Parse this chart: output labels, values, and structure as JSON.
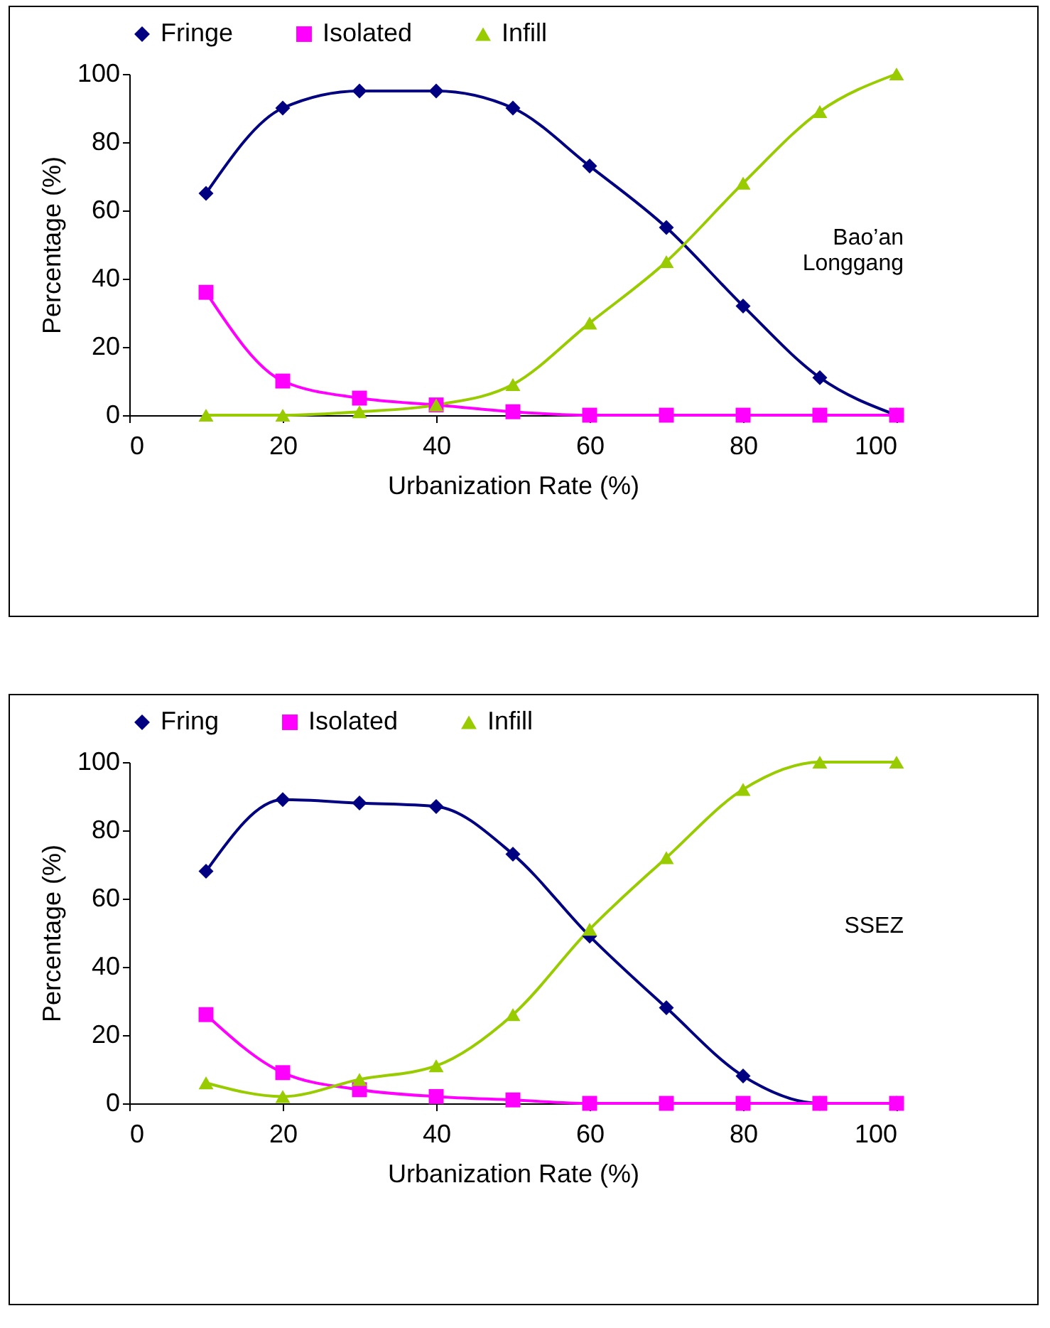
{
  "chart_data": [
    {
      "type": "line",
      "xlabel": "Urbanization Rate (%)",
      "ylabel": "Percentage (%)",
      "annotations": [
        "Bao’an\nLonggang"
      ],
      "x": [
        10,
        20,
        30,
        40,
        50,
        60,
        70,
        80,
        90,
        100
      ],
      "xlim": [
        0,
        100
      ],
      "xticks": [
        0,
        20,
        40,
        60,
        80,
        100
      ],
      "ylim": [
        0,
        100
      ],
      "yticks": [
        0,
        20,
        40,
        60,
        80,
        100
      ],
      "legend": "top",
      "grid": false,
      "series": [
        {
          "name": "Fringe",
          "color": "#000080",
          "marker": "diamond",
          "values": [
            65,
            90,
            95,
            95,
            90,
            73,
            55,
            32,
            11,
            0
          ]
        },
        {
          "name": "Isolated",
          "color": "#ff00ff",
          "marker": "square",
          "values": [
            36,
            10,
            5,
            3,
            1,
            0,
            0,
            0,
            0,
            0
          ]
        },
        {
          "name": "Infill",
          "color": "#99cc00",
          "marker": "triangle",
          "values": [
            0,
            0,
            1,
            3,
            9,
            27,
            45,
            68,
            89,
            100
          ]
        }
      ]
    },
    {
      "type": "line",
      "xlabel": "Urbanization Rate (%)",
      "ylabel": "Percentage (%)",
      "annotations": [
        "SSEZ"
      ],
      "x": [
        10,
        20,
        30,
        40,
        50,
        60,
        70,
        80,
        90,
        100
      ],
      "xlim": [
        0,
        100
      ],
      "xticks": [
        0,
        20,
        40,
        60,
        80,
        100
      ],
      "ylim": [
        0,
        100
      ],
      "yticks": [
        0,
        20,
        40,
        60,
        80,
        100
      ],
      "legend": "top",
      "grid": false,
      "series": [
        {
          "name": "Fring",
          "color": "#000080",
          "marker": "diamond",
          "values": [
            68,
            89,
            88,
            87,
            73,
            49,
            28,
            8,
            0,
            0
          ]
        },
        {
          "name": "Isolated",
          "color": "#ff00ff",
          "marker": "square",
          "values": [
            26,
            9,
            4,
            2,
            1,
            0,
            0,
            0,
            0,
            0
          ]
        },
        {
          "name": "Infill",
          "color": "#99cc00",
          "marker": "triangle",
          "values": [
            6,
            2,
            7,
            11,
            26,
            51,
            72,
            92,
            100,
            100
          ]
        }
      ]
    }
  ]
}
